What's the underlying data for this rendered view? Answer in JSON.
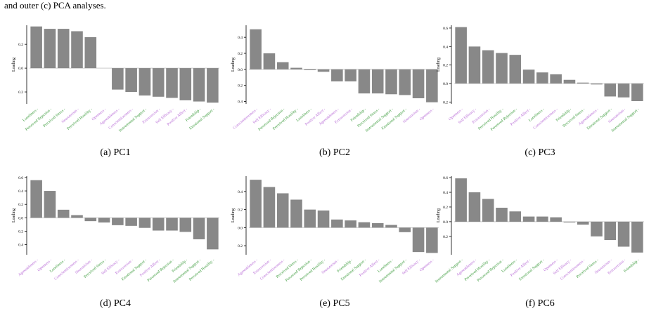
{
  "caption_fragment": "and outer (c) PCA analyses.",
  "colors": {
    "bar": "#888888",
    "purple": "#b86bd6",
    "green": "#3a9a3a",
    "axis": "#000000"
  },
  "chart_data": [
    {
      "type": "bar",
      "caption": "(a) PC1",
      "ylabel": "Loading",
      "ylim": [
        -0.3,
        0.36
      ],
      "yticks": [
        0.2,
        0.0,
        -0.2
      ],
      "ytick_labels": [
        "0.2",
        "0.0",
        "0.2"
      ],
      "categories": [
        "Loneliness",
        "Perceived Rejection",
        "Perceived Stress",
        "Neuroticism",
        "Perceived Hostility",
        "Openness",
        "Agreeableness",
        "Conscientiousness",
        "Instrumental Support",
        "Extraversion",
        "Self Efficacy",
        "Positive Affect",
        "Friendship",
        "Emotional Support"
      ],
      "category_colors": [
        "green",
        "green",
        "green",
        "purple",
        "green",
        "purple",
        "purple",
        "purple",
        "green",
        "purple",
        "purple",
        "purple",
        "green",
        "green"
      ],
      "values": [
        0.35,
        0.33,
        0.33,
        0.31,
        0.26,
        0.0,
        -0.18,
        -0.2,
        -0.23,
        -0.24,
        -0.25,
        -0.27,
        -0.28,
        -0.29
      ]
    },
    {
      "type": "bar",
      "caption": "(b) PC2",
      "ylabel": "Loading",
      "ylim": [
        -0.43,
        0.55
      ],
      "yticks": [
        0.4,
        0.2,
        0.0,
        -0.2,
        -0.4
      ],
      "ytick_labels": [
        "0.4",
        "0.2",
        "0.0",
        "0.2",
        "0.4"
      ],
      "categories": [
        "Conscientiousness",
        "Self Efficacy",
        "Perceived Rejection",
        "Perceived Hostility",
        "Loneliness",
        "Positive Affect",
        "Agreeableness",
        "Extraversion",
        "Friendship",
        "Perceived Stress",
        "Instrumental Support",
        "Emotional Support",
        "Neuroticism",
        "Openness"
      ],
      "category_colors": [
        "purple",
        "purple",
        "green",
        "green",
        "green",
        "purple",
        "purple",
        "purple",
        "green",
        "green",
        "green",
        "green",
        "purple",
        "purple"
      ],
      "values": [
        0.5,
        0.2,
        0.09,
        0.02,
        -0.01,
        -0.03,
        -0.15,
        -0.15,
        -0.3,
        -0.3,
        -0.31,
        -0.32,
        -0.36,
        -0.41
      ]
    },
    {
      "type": "bar",
      "caption": "(c) PC3",
      "ylabel": "Loading",
      "ylim": [
        -0.22,
        0.63
      ],
      "yticks": [
        0.6,
        0.4,
        0.2,
        0.0,
        -0.2
      ],
      "ytick_labels": [
        "0.6",
        "0.4",
        "0.2",
        "0.0",
        "0.2"
      ],
      "categories": [
        "Openness",
        "Self Efficacy",
        "Extraversion",
        "Perceived Hostility",
        "Perceived Rejection",
        "Positive Affect",
        "Loneliness",
        "Conscientiousness",
        "Friendship",
        "Perceived Stress",
        "Agreeableness",
        "Emotional Support",
        "Neuroticism",
        "Instrumental Support"
      ],
      "category_colors": [
        "purple",
        "purple",
        "purple",
        "green",
        "green",
        "purple",
        "green",
        "purple",
        "green",
        "green",
        "purple",
        "green",
        "purple",
        "green"
      ],
      "values": [
        0.61,
        0.4,
        0.36,
        0.33,
        0.31,
        0.15,
        0.12,
        0.1,
        0.04,
        0.01,
        -0.01,
        -0.14,
        -0.15,
        -0.19
      ]
    },
    {
      "type": "bar",
      "caption": "(d) PC4",
      "ylabel": "Loading",
      "ylim": [
        -0.55,
        0.62
      ],
      "yticks": [
        0.6,
        0.4,
        0.2,
        0.0,
        -0.2,
        -0.4
      ],
      "ytick_labels": [
        "0.6",
        "0.4",
        "0.2",
        "0.0",
        "0.2",
        "0.4"
      ],
      "categories": [
        "Agreeableness",
        "Openness",
        "Loneliness",
        "Conscientiousness",
        "Neuroticism",
        "Perceived Stress",
        "Self Efficacy",
        "Extraversion",
        "Emotional Support",
        "Positive Affect",
        "Perceived Rejection",
        "Friendship",
        "Instrumental Support",
        "Perceived Hostility"
      ],
      "category_colors": [
        "purple",
        "purple",
        "green",
        "purple",
        "purple",
        "green",
        "purple",
        "purple",
        "green",
        "purple",
        "green",
        "green",
        "green",
        "green"
      ],
      "values": [
        0.56,
        0.4,
        0.12,
        0.04,
        -0.05,
        -0.07,
        -0.11,
        -0.12,
        -0.15,
        -0.19,
        -0.19,
        -0.21,
        -0.32,
        -0.47
      ]
    },
    {
      "type": "bar",
      "caption": "(e) PC5",
      "ylabel": "Loading",
      "ylim": [
        -0.3,
        0.57
      ],
      "yticks": [
        0.4,
        0.2,
        0.0,
        -0.2
      ],
      "ytick_labels": [
        "0.4",
        "0.2",
        "0.0",
        "0.2"
      ],
      "categories": [
        "Agreeableness",
        "Extraversion",
        "Conscientiousness",
        "Perceived Stress",
        "Perceived Rejection",
        "Perceived Hostility",
        "Neuroticism",
        "Friendship",
        "Emotional Support",
        "Positive Affect",
        "Loneliness",
        "Instrumental Support",
        "Self Efficacy",
        "Openness"
      ],
      "category_colors": [
        "purple",
        "purple",
        "purple",
        "green",
        "green",
        "green",
        "purple",
        "green",
        "green",
        "purple",
        "green",
        "green",
        "purple",
        "purple"
      ],
      "values": [
        0.53,
        0.45,
        0.38,
        0.31,
        0.2,
        0.19,
        0.09,
        0.08,
        0.06,
        0.05,
        0.03,
        -0.05,
        -0.27,
        -0.28
      ]
    },
    {
      "type": "bar",
      "caption": "(f) PC6",
      "ylabel": "Loading",
      "ylim": [
        -0.45,
        0.62
      ],
      "yticks": [
        0.6,
        0.4,
        0.2,
        0.0,
        -0.2
      ],
      "ytick_labels": [
        "0.6",
        "0.4",
        "0.2",
        "0.0",
        "0.2"
      ],
      "categories": [
        "Instrumental Support",
        "Agreeableness",
        "Perceived Hostility",
        "Perceived Rejection",
        "Loneliness",
        "Positive Affect",
        "Emotional Support",
        "Openness",
        "Self Efficacy",
        "Conscientiousness",
        "Perceived Stress",
        "Neuroticism",
        "Extraversion",
        "Friendship"
      ],
      "category_colors": [
        "green",
        "purple",
        "green",
        "green",
        "green",
        "purple",
        "green",
        "purple",
        "purple",
        "purple",
        "green",
        "purple",
        "purple",
        "green"
      ],
      "values": [
        0.59,
        0.4,
        0.31,
        0.19,
        0.14,
        0.07,
        0.07,
        0.06,
        -0.01,
        -0.04,
        -0.2,
        -0.25,
        -0.34,
        -0.42
      ]
    }
  ]
}
